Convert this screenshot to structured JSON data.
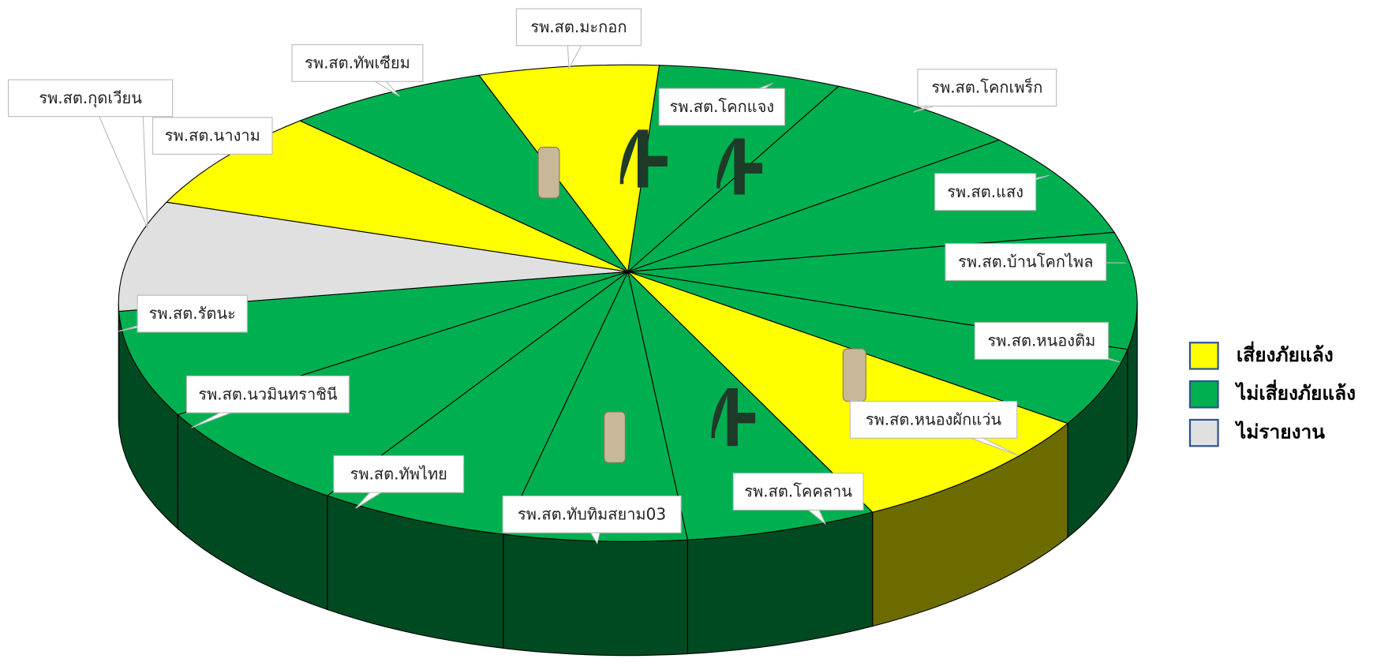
{
  "chart_data": {
    "type": "pie",
    "categories": [
      "รพ.สต.มะกอก",
      "รพ.สต.โคกแจง",
      "รพ.สต.โคกเพร็ก",
      "รพ.สต.แสง",
      "รพ.สต.บ้านโคกไพล",
      "รพ.สต.หนองติม",
      "รพ.สต.หนองผักแว่น",
      "รพ.สต.โคคลาน",
      "รพ.สต.ทับทิมสยาม03",
      "รพ.สต.ทัพไทย",
      "รพ.สต.นวมินทราชินี",
      "รพ.สต.รัตนะ",
      "รพ.สต.กุดเวียน",
      "รพ.สต.นางาม",
      "รพ.สต.ทัพเซียม"
    ],
    "values": [
      5.7,
      5.8,
      6.2,
      7.2,
      7.9,
      5.3,
      8.6,
      6.1,
      5.8,
      6.1,
      7.2,
      7.2,
      7.5,
      6.9,
      6.4
    ],
    "colors": [
      "#ffff00",
      "#00b050",
      "#00b050",
      "#00b050",
      "#00b050",
      "#00b050",
      "#ffff00",
      "#00b050",
      "#00b050",
      "#00b050",
      "#00b050",
      "#00b050",
      "#e0e0e0",
      "#ffff00",
      "#00b050"
    ],
    "legend": [
      {
        "name": "เสี่ยงภัยแล้ง",
        "color": "#ffff00"
      },
      {
        "name": "ไม่เสี่ยงภัยแล้ง",
        "color": "#00b050"
      },
      {
        "name": "ไม่รายงาน",
        "color": "#e0e0e0"
      }
    ]
  }
}
